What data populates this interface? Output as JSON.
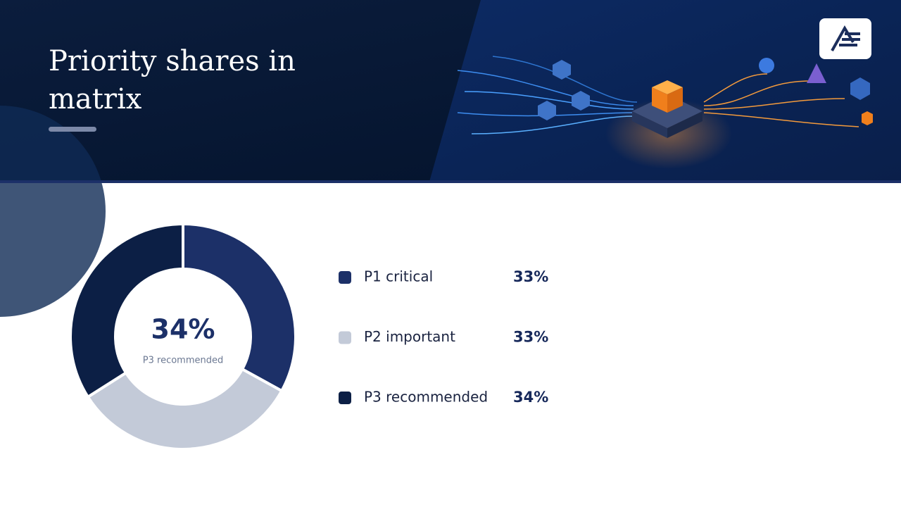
{
  "chart_data": {
    "type": "pie",
    "title": "Priority shares in matrix",
    "categories": [
      "P1 critical",
      "P2 important",
      "P3 recommended"
    ],
    "values": [
      33,
      33,
      34
    ],
    "value_labels": [
      "33%",
      "33%",
      "34%"
    ],
    "colors": [
      "#1c3068",
      "#c3cad8",
      "#0c1f45"
    ],
    "donut": true
  }
}
